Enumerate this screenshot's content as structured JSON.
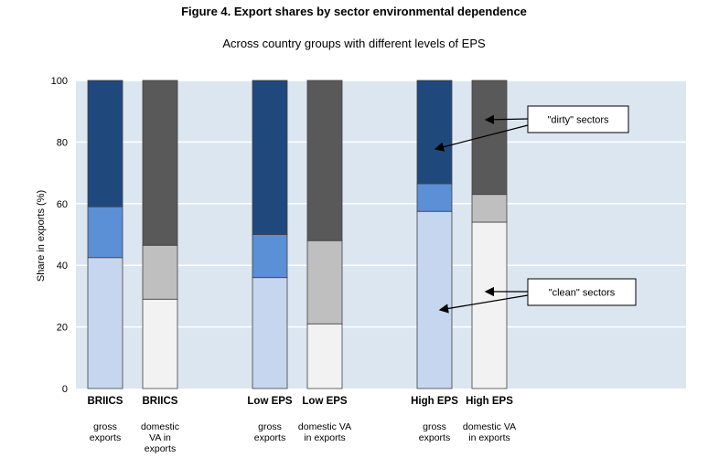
{
  "chart_data": {
    "type": "bar",
    "stacked": true,
    "title": "Figure 4. Export shares by sector environmental dependence",
    "subtitle": "Across country groups with different levels of EPS",
    "ylabel": "Share in exports (%)",
    "ylim": [
      0,
      100
    ],
    "yticks": [
      0,
      20,
      40,
      60,
      80,
      100
    ],
    "grid": true,
    "bars": [
      {
        "label": "BRIICS",
        "sublabel": "gross\nexports",
        "kind": "gross",
        "segments": [
          42.5,
          16.5,
          41.0
        ]
      },
      {
        "label": "BRIICS",
        "sublabel": "domestic\nVA in\nexports",
        "kind": "va",
        "segments": [
          29.0,
          17.5,
          53.5
        ]
      },
      {
        "label": "Low EPS",
        "sublabel": "gross\nexports",
        "kind": "gross",
        "segments": [
          36.0,
          14.0,
          50.0
        ]
      },
      {
        "label": "Low EPS",
        "sublabel": "domestic VA\nin exports",
        "kind": "va",
        "segments": [
          21.0,
          27.0,
          52.0
        ]
      },
      {
        "label": "High EPS",
        "sublabel": "gross\nexports",
        "kind": "gross",
        "segments": [
          57.5,
          9.0,
          33.5
        ]
      },
      {
        "label": "High EPS",
        "sublabel": "domestic VA\nin exports",
        "kind": "va",
        "segments": [
          54.0,
          9.0,
          37.0
        ]
      }
    ],
    "annotations": [
      {
        "text": "\"dirty\" sectors"
      },
      {
        "text": "\"clean\" sectors"
      }
    ],
    "colors": {
      "plot_bg": "#dce6f1",
      "gridline": "#ffffff",
      "gross": [
        "#c6d6ee",
        "#5b8fd6",
        "#1f497d"
      ],
      "va": [
        "#f2f2f2",
        "#bfbfbf",
        "#595959"
      ],
      "bar_edge": "#404040"
    }
  }
}
